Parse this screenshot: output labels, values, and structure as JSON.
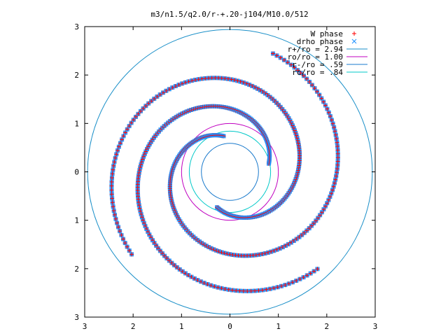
{
  "chart_data": {
    "type": "scatter",
    "title": "m3/n1.5/q2.0/r-+.20-j104/M10.0/512",
    "xlim": [
      -3,
      3
    ],
    "ylim": [
      -3,
      3
    ],
    "xticks": [
      {
        "value": -3,
        "label": "3"
      },
      {
        "value": -2,
        "label": "2"
      },
      {
        "value": -1,
        "label": "1"
      },
      {
        "value": 0,
        "label": "0"
      },
      {
        "value": 1,
        "label": "1"
      },
      {
        "value": 2,
        "label": "2"
      },
      {
        "value": 3,
        "label": "3"
      }
    ],
    "yticks": [
      {
        "value": 3,
        "label": "3"
      },
      {
        "value": 2,
        "label": "2"
      },
      {
        "value": 1,
        "label": "1"
      },
      {
        "value": 0,
        "label": "0"
      },
      {
        "value": -1,
        "label": "1"
      },
      {
        "value": -2,
        "label": "2"
      },
      {
        "value": -3,
        "label": "3"
      }
    ],
    "legend_position": "top-right",
    "point_series": [
      {
        "name": "W phase",
        "marker": "plus",
        "color": "#ff0000"
      },
      {
        "name": "drho phase",
        "marker": "cross",
        "color": "#1e90ff"
      }
    ],
    "circles": [
      {
        "name": "r+/ro = 2.94",
        "radius": 2.94,
        "color": "#1a8fc8"
      },
      {
        "name": "ro/ro = 1.00",
        "radius": 1.0,
        "color": "#c000c0"
      },
      {
        "name": "r-/ro = .59",
        "radius": 0.59,
        "color": "#1a7acc"
      },
      {
        "name": "rc/ro = .84",
        "radius": 0.84,
        "color": "#00c8c8"
      }
    ],
    "spiral_arms": [
      {
        "r_start": 0.75,
        "r_end": 2.6,
        "theta_start_deg": 100,
        "winding_deg": 330
      },
      {
        "r_start": 0.78,
        "r_end": 2.65,
        "theta_start_deg": 250,
        "winding_deg": 330
      },
      {
        "r_start": 0.82,
        "r_end": 2.7,
        "theta_start_deg": 12,
        "winding_deg": 300
      }
    ]
  }
}
